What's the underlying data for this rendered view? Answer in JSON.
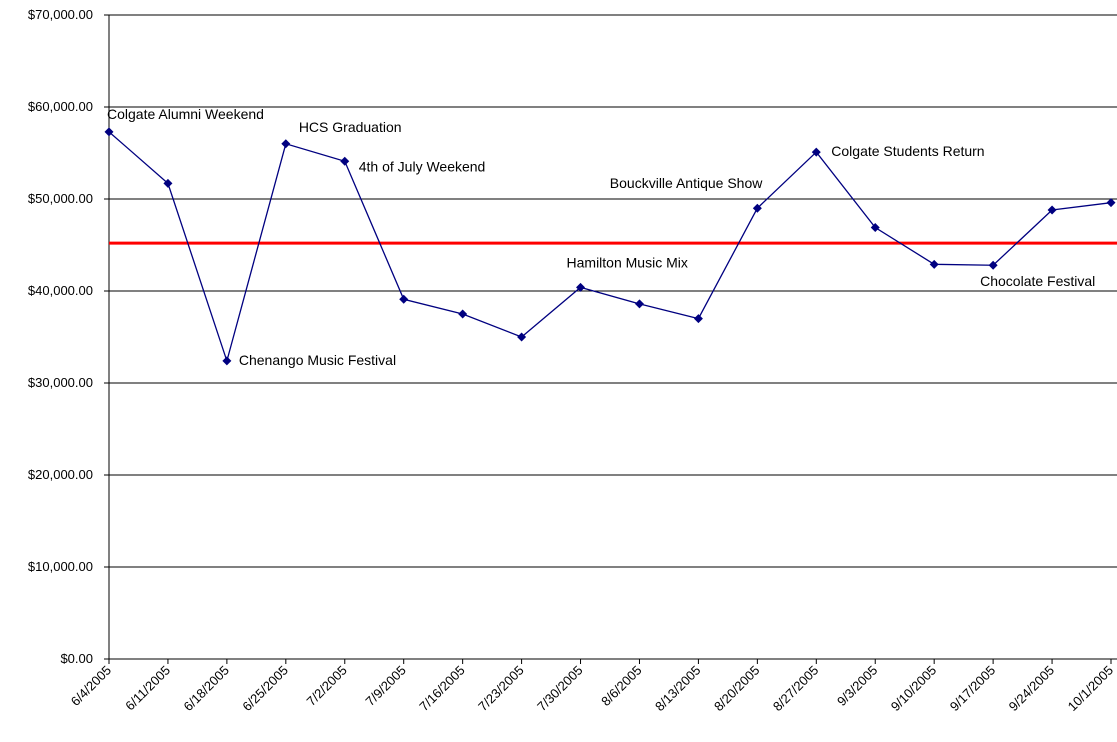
{
  "chart_data": {
    "type": "line",
    "title": "",
    "xlabel": "",
    "ylabel": "",
    "ylim": [
      0,
      70000
    ],
    "y_ticks": [
      0,
      10000,
      20000,
      30000,
      40000,
      50000,
      60000,
      70000
    ],
    "y_tick_labels": [
      "$0.00",
      "$10,000.00",
      "$20,000.00",
      "$30,000.00",
      "$40,000.00",
      "$50,000.00",
      "$60,000.00",
      "$70,000.00"
    ],
    "grid": true,
    "legend": "none",
    "categories": [
      "6/4/2005",
      "6/11/2005",
      "6/18/2005",
      "6/25/2005",
      "7/2/2005",
      "7/9/2005",
      "7/16/2005",
      "7/23/2005",
      "7/30/2005",
      "8/6/2005",
      "8/13/2005",
      "8/20/2005",
      "8/27/2005",
      "9/3/2005",
      "9/10/2005",
      "9/17/2005",
      "9/24/2005",
      "10/1/2005"
    ],
    "series": [
      {
        "color": "#000080",
        "marker": "diamond",
        "values": [
          57300,
          51700,
          32400,
          56000,
          54100,
          39100,
          37500,
          35000,
          40400,
          38600,
          37000,
          49000,
          55100,
          46900,
          42900,
          42800,
          48800,
          49600
        ]
      }
    ],
    "reference_line": {
      "value": 45200,
      "color": "#ff0000"
    },
    "annotations": [
      {
        "index": 0,
        "text": "Colgate Alumni Weekend"
      },
      {
        "index": 2,
        "text": "Chenango Music Festival"
      },
      {
        "index": 3,
        "text": "HCS Graduation"
      },
      {
        "index": 4,
        "text": "4th of July Weekend"
      },
      {
        "index": 8,
        "text": "Hamilton Music Mix"
      },
      {
        "index": 11,
        "text": "Bouckville Antique Show"
      },
      {
        "index": 12,
        "text": "Colgate Students Return"
      },
      {
        "index": 15,
        "text": "Chocolate Festival"
      }
    ]
  }
}
